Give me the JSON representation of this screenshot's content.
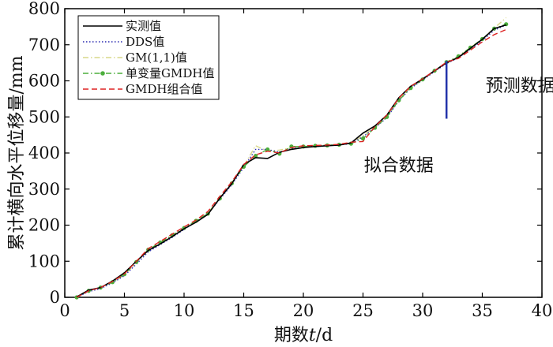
{
  "chart_data": {
    "type": "line",
    "title": "",
    "xlabel_parts": [
      "期数",
      "t",
      "/d"
    ],
    "ylabel": "累计横向水平位移量/mm",
    "xlim": [
      0,
      40
    ],
    "ylim": [
      0,
      800
    ],
    "x_ticks": [
      "0",
      "5",
      "10",
      "15",
      "20",
      "25",
      "30",
      "35",
      "40"
    ],
    "y_ticks": [
      "0",
      "100",
      "200",
      "300",
      "400",
      "500",
      "600",
      "700",
      "800"
    ],
    "x_tick_values": [
      0,
      5,
      10,
      15,
      20,
      25,
      30,
      35,
      40
    ],
    "y_tick_values": [
      0,
      100,
      200,
      300,
      400,
      500,
      600,
      700,
      800
    ],
    "grid": false,
    "legend_position": "top-left",
    "x": [
      1,
      2,
      3,
      4,
      5,
      6,
      7,
      8,
      9,
      10,
      11,
      12,
      13,
      14,
      15,
      16,
      17,
      18,
      19,
      20,
      21,
      22,
      23,
      24,
      25,
      26,
      27,
      28,
      29,
      30,
      31,
      32,
      33,
      34,
      35,
      36,
      37
    ],
    "series": [
      {
        "name": "实测值",
        "color": "#000000",
        "style": "solid",
        "values": [
          1,
          20,
          27,
          45,
          68,
          100,
          130,
          148,
          168,
          190,
          208,
          230,
          275,
          315,
          368,
          387,
          385,
          402,
          410,
          415,
          418,
          420,
          422,
          428,
          455,
          475,
          505,
          553,
          585,
          605,
          628,
          650,
          665,
          690,
          715,
          745,
          755
        ]
      },
      {
        "name": "DDS值",
        "color": "#2a2ab0",
        "style": "dotted",
        "values": [
          0,
          16,
          24,
          40,
          60,
          92,
          126,
          146,
          166,
          188,
          210,
          232,
          272,
          312,
          360,
          410,
          410,
          402,
          412,
          416,
          419,
          421,
          422,
          426,
          445,
          470,
          498,
          545,
          580,
          602,
          626,
          648,
          664,
          688,
          712,
          740,
          755
        ]
      },
      {
        "name": "GM(1,1)值",
        "color": "#d8d88a",
        "style": "dashdot",
        "values": [
          0,
          18,
          26,
          42,
          62,
          96,
          130,
          150,
          170,
          190,
          212,
          234,
          276,
          318,
          364,
          420,
          405,
          408,
          415,
          418,
          420,
          422,
          423,
          427,
          448,
          472,
          500,
          548,
          583,
          604,
          628,
          650,
          666,
          692,
          716,
          746,
          775
        ]
      },
      {
        "name": "单变量GMDH值",
        "color": "#4cae3c",
        "style": "dashdot-marker",
        "values": [
          0,
          18,
          27,
          42,
          64,
          98,
          132,
          152,
          172,
          192,
          212,
          232,
          274,
          316,
          362,
          392,
          410,
          398,
          418,
          418,
          420,
          421,
          423,
          426,
          440,
          470,
          500,
          546,
          580,
          604,
          628,
          652,
          668,
          692,
          716,
          745,
          757
        ]
      },
      {
        "name": "GMDH组合值",
        "color": "#dd2222",
        "style": "dashed",
        "values": [
          0,
          18,
          27,
          44,
          65,
          100,
          135,
          155,
          175,
          195,
          214,
          238,
          280,
          320,
          368,
          395,
          405,
          400,
          415,
          420,
          421,
          422,
          424,
          430,
          432,
          473,
          505,
          552,
          585,
          606,
          628,
          652,
          662,
          685,
          708,
          728,
          742
        ]
      }
    ],
    "divider_x": 32,
    "divider_range": [
      495,
      655
    ],
    "annotations": [
      {
        "text": "拟合数据",
        "x": 28,
        "y": 350
      },
      {
        "text": "预测数据",
        "x": 38.2,
        "y": 570
      }
    ]
  }
}
